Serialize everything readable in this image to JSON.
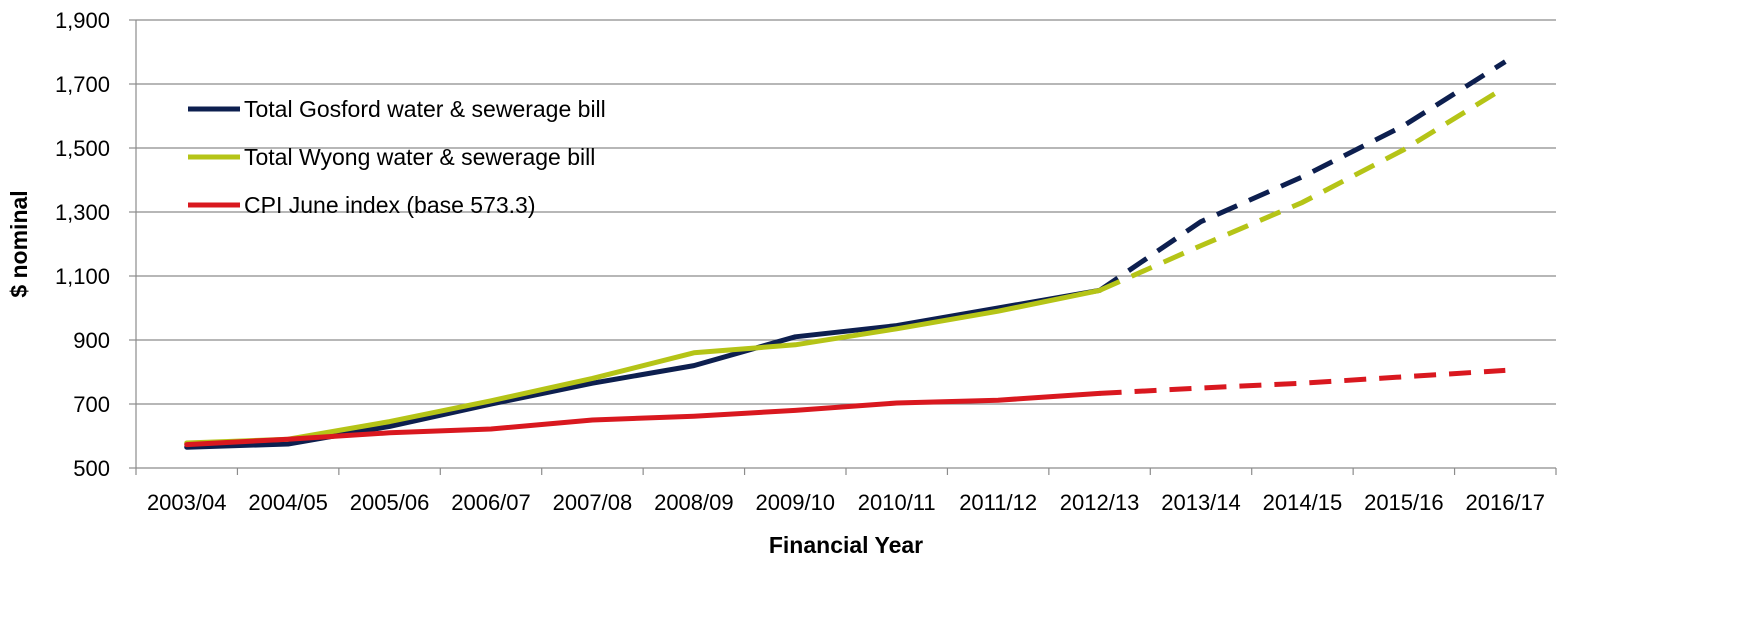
{
  "chart_data": {
    "type": "line",
    "title": "",
    "xlabel": "Financial Year",
    "ylabel": "$ nominal",
    "categories": [
      "2003/04",
      "2004/05",
      "2005/06",
      "2006/07",
      "2007/08",
      "2008/09",
      "2009/10",
      "2010/11",
      "2011/12",
      "2012/13",
      "2013/14",
      "2014/15",
      "2015/16",
      "2016/17"
    ],
    "ylim": [
      500,
      1900
    ],
    "yticks": [
      500,
      700,
      900,
      1100,
      1300,
      1500,
      1700,
      1900
    ],
    "ytick_labels": [
      "500",
      "700",
      "900",
      "1,100",
      "1,300",
      "1,500",
      "1,700",
      "1,900"
    ],
    "grid": "horizontal",
    "legend_position": "top-left",
    "projection_starts_at": "2012/13",
    "series": [
      {
        "name": "Total Gosford water & sewerage bill",
        "color": "#0d1f4f",
        "values": [
          565,
          575,
          630,
          700,
          765,
          820,
          910,
          945,
          1000,
          1055,
          1270,
          1410,
          1570,
          1770
        ]
      },
      {
        "name": "Total Wyong water & sewerage bill",
        "color": "#b5c417",
        "values": [
          578,
          590,
          645,
          710,
          780,
          860,
          885,
          935,
          990,
          1055,
          1195,
          1330,
          1495,
          1690
        ]
      },
      {
        "name": "CPI June index (base 573.3)",
        "color": "#d9181f",
        "values": [
          573,
          590,
          610,
          622,
          650,
          662,
          680,
          703,
          712,
          733,
          750,
          765,
          785,
          805
        ]
      }
    ]
  }
}
